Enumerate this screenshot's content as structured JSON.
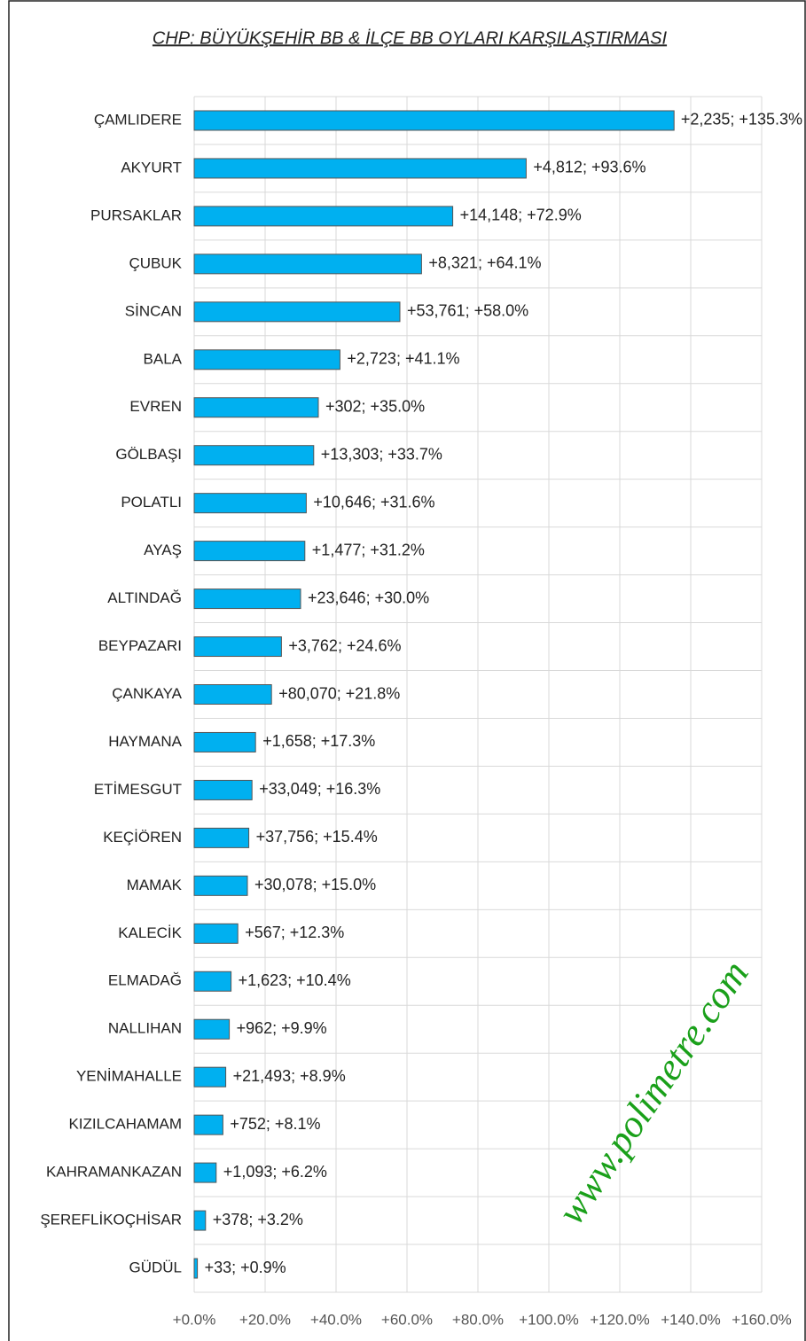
{
  "chart_data": {
    "type": "hbar",
    "title": "CHP: BÜYÜKŞEHİR BB & İLÇE BB OYLARI KARŞILAŞTIRMASI",
    "annotation": "www.polimetre.com",
    "categories": [
      "ÇAMLIDERE",
      "AKYURT",
      "PURSAKLAR",
      "ÇUBUK",
      "SİNCAN",
      "BALA",
      "EVREN",
      "GÖLBAŞI",
      "POLATLI",
      "AYAŞ",
      "ALTINDAĞ",
      "BEYPAZARI",
      "ÇANKAYA",
      "HAYMANA",
      "ETİMESGUT",
      "KEÇİÖREN",
      "MAMAK",
      "KALECİK",
      "ELMADAĞ",
      "NALLIHAN",
      "YENİMAHALLE",
      "KIZILCAHAMAM",
      "KAHRAMANKAZAN",
      "ŞEREFLİKOÇHİSAR",
      "GÜDÜL"
    ],
    "values": [
      135.3,
      93.6,
      72.9,
      64.1,
      58.0,
      41.1,
      35.0,
      33.7,
      31.6,
      31.2,
      30.0,
      24.6,
      21.8,
      17.3,
      16.3,
      15.4,
      15.0,
      12.3,
      10.4,
      9.9,
      8.9,
      8.1,
      6.2,
      3.2,
      0.9
    ],
    "value_labels": [
      "+2,235; +135.3%",
      "+4,812; +93.6%",
      "+14,148; +72.9%",
      "+8,321; +64.1%",
      "+53,761; +58.0%",
      "+2,723; +41.1%",
      "+302; +35.0%",
      "+13,303; +33.7%",
      "+10,646; +31.6%",
      "+1,477; +31.2%",
      "+23,646; +30.0%",
      "+3,762; +24.6%",
      "+80,070; +21.8%",
      "+1,658; +17.3%",
      "+33,049; +16.3%",
      "+37,756; +15.4%",
      "+30,078; +15.0%",
      "+567; +12.3%",
      "+1,623; +10.4%",
      "+962; +9.9%",
      "+21,493; +8.9%",
      "+752; +8.1%",
      "+1,093; +6.2%",
      "+378; +3.2%",
      "+33; +0.9%"
    ],
    "color": "#00b0f0",
    "xlim": [
      0,
      160
    ],
    "xticks": [
      {
        "value": 0,
        "label": "+0.0%"
      },
      {
        "value": 20,
        "label": "+20.0%"
      },
      {
        "value": 40,
        "label": "+40.0%"
      },
      {
        "value": 60,
        "label": "+60.0%"
      },
      {
        "value": 80,
        "label": "+80.0%"
      },
      {
        "value": 100,
        "label": "+100.0%"
      },
      {
        "value": 120,
        "label": "+120.0%"
      },
      {
        "value": 140,
        "label": "+140.0%"
      },
      {
        "value": 160,
        "label": "+160.0%"
      }
    ],
    "grid": true
  }
}
